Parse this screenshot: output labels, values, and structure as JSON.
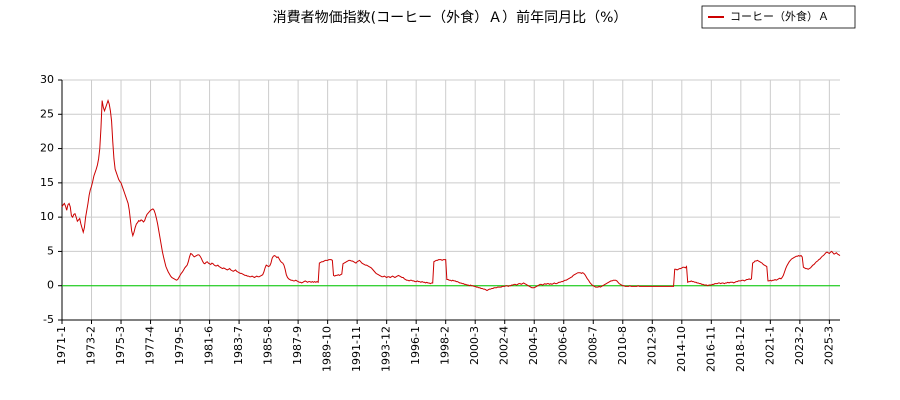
{
  "chart_data": {
    "type": "line",
    "title": "消費者物価指数(コーヒー（外食）Ａ）前年同月比（%）",
    "categories": [
      "1971-1",
      null,
      null,
      null,
      null,
      null,
      null,
      null,
      null,
      null,
      null,
      null,
      null,
      null,
      null,
      null,
      null,
      null,
      null,
      null,
      null,
      null,
      null,
      null,
      null,
      "1973-2",
      null,
      null,
      null,
      null,
      null,
      null,
      null,
      null,
      null,
      null,
      null,
      null,
      null,
      null,
      null,
      null,
      null,
      null,
      null,
      null,
      null,
      null,
      null,
      null,
      "1975-3",
      null,
      null,
      null,
      null,
      null,
      null,
      null,
      null,
      null,
      null,
      null,
      null,
      null,
      null,
      null,
      null,
      null,
      null,
      null,
      null,
      null,
      null,
      null,
      null,
      "1977-4",
      null,
      null,
      null,
      null,
      null,
      null,
      null,
      null,
      null,
      null,
      null,
      null,
      null,
      null,
      null,
      null,
      null,
      null,
      null,
      null,
      null,
      null,
      null,
      null,
      "1979-5",
      null,
      null,
      null,
      null,
      null,
      null,
      null,
      null,
      null,
      null,
      null,
      null,
      null,
      null,
      null,
      null,
      null,
      null,
      null,
      null,
      null,
      null,
      null,
      null,
      "1981-6",
      null,
      null,
      null,
      null,
      null,
      null,
      null,
      null,
      null,
      null,
      null,
      null,
      null,
      null,
      null,
      null,
      null,
      null,
      null,
      null,
      null,
      null,
      null,
      null,
      "1983-7",
      null,
      null,
      null,
      null,
      null,
      null,
      null,
      null,
      null,
      null,
      null,
      null,
      null,
      null,
      null,
      null,
      null,
      null,
      null,
      null,
      null,
      null,
      null,
      null,
      "1985-8",
      null,
      null,
      null,
      null,
      null,
      null,
      null,
      null,
      null,
      null,
      null,
      null,
      null,
      null,
      null,
      null,
      null,
      null,
      null,
      null,
      null,
      null,
      null,
      null,
      "1987-9",
      null,
      null,
      null,
      null,
      null,
      null,
      null,
      null,
      null,
      null,
      null,
      null,
      null,
      null,
      null,
      null,
      null,
      null,
      null,
      null,
      null,
      null,
      null,
      null,
      "1989-10",
      null,
      null,
      null,
      null,
      null,
      null,
      null,
      null,
      null,
      null,
      null,
      null,
      null,
      null,
      null,
      null,
      null,
      null,
      null,
      null,
      null,
      null,
      null,
      null,
      "1991-11",
      null,
      null,
      null,
      null,
      null,
      null,
      null,
      null,
      null,
      null,
      null,
      null,
      null,
      null,
      null,
      null,
      null,
      null,
      null,
      null,
      null,
      null,
      null,
      null,
      "1993-12",
      null,
      null,
      null,
      null,
      null,
      null,
      null,
      null,
      null,
      null,
      null,
      null,
      null,
      null,
      null,
      null,
      null,
      null,
      null,
      null,
      null,
      null,
      null,
      null,
      "1996-1",
      null,
      null,
      null,
      null,
      null,
      null,
      null,
      null,
      null,
      null,
      null,
      null,
      null,
      null,
      null,
      null,
      null,
      null,
      null,
      null,
      null,
      null,
      null,
      null,
      "1998-2",
      null,
      null,
      null,
      null,
      null,
      null,
      null,
      null,
      null,
      null,
      null,
      null,
      null,
      null,
      null,
      null,
      null,
      null,
      null,
      null,
      null,
      null,
      null,
      null,
      "2000-3",
      null,
      null,
      null,
      null,
      null,
      null,
      null,
      null,
      null,
      null,
      null,
      null,
      null,
      null,
      null,
      null,
      null,
      null,
      null,
      null,
      null,
      null,
      null,
      null,
      "2002-4",
      null,
      null,
      null,
      null,
      null,
      null,
      null,
      null,
      null,
      null,
      null,
      null,
      null,
      null,
      null,
      null,
      null,
      null,
      null,
      null,
      null,
      null,
      null,
      null,
      "2004-5",
      null,
      null,
      null,
      null,
      null,
      null,
      null,
      null,
      null,
      null,
      null,
      null,
      null,
      null,
      null,
      null,
      null,
      null,
      null,
      null,
      null,
      null,
      null,
      null,
      "2006-6",
      null,
      null,
      null,
      null,
      null,
      null,
      null,
      null,
      null,
      null,
      null,
      null,
      null,
      null,
      null,
      null,
      null,
      null,
      null,
      null,
      null,
      null,
      null,
      null,
      "2008-7",
      null,
      null,
      null,
      null,
      null,
      null,
      null,
      null,
      null,
      null,
      null,
      null,
      null,
      null,
      null,
      null,
      null,
      null,
      null,
      null,
      null,
      null,
      null,
      null,
      "2010-8",
      null,
      null,
      null,
      null,
      null,
      null,
      null,
      null,
      null,
      null,
      null,
      null,
      null,
      null,
      null,
      null,
      null,
      null,
      null,
      null,
      null,
      null,
      null,
      null,
      "2012-9",
      null,
      null,
      null,
      null,
      null,
      null,
      null,
      null,
      null,
      null,
      null,
      null,
      null,
      null,
      null,
      null,
      null,
      null,
      null,
      null,
      null,
      null,
      null,
      null,
      "2014-10",
      null,
      null,
      null,
      null,
      null,
      null,
      null,
      null,
      null,
      null,
      null,
      null,
      null,
      null,
      null,
      null,
      null,
      null,
      null,
      null,
      null,
      null,
      null,
      null,
      "2016-11",
      null,
      null,
      null,
      null,
      null,
      null,
      null,
      null,
      null,
      null,
      null,
      null,
      null,
      null,
      null,
      null,
      null,
      null,
      null,
      null,
      null,
      null,
      null,
      null,
      "2018-12",
      null,
      null,
      null,
      null,
      null,
      null,
      null,
      null,
      null,
      null,
      null,
      null,
      null,
      null,
      null,
      null,
      null,
      null,
      null,
      null,
      null,
      null,
      null,
      null,
      "2021-1",
      null,
      null,
      null,
      null,
      null,
      null,
      null,
      null,
      null,
      null,
      null,
      null,
      null,
      null,
      null,
      null,
      null,
      null,
      null,
      null,
      null,
      null,
      null,
      null,
      "2023-2",
      null,
      null,
      null,
      null,
      null,
      null,
      null,
      null,
      null,
      null,
      null,
      null,
      null,
      null,
      null,
      null,
      null,
      null,
      null,
      null,
      null,
      null,
      null,
      null,
      "2025-3",
      null,
      null,
      null,
      null,
      null,
      null,
      null,
      null,
      null
    ],
    "series": [
      {
        "name": "コーヒー（外食）Ａ",
        "color": "#cc0000",
        "values": [
          11.5,
          11.8,
          12,
          11.6,
          11,
          11.8,
          12,
          11.5,
          10.2,
          10,
          10.4,
          10.5,
          10,
          9.4,
          9.6,
          9.8,
          9,
          8.4,
          7.8,
          8.5,
          10,
          11,
          12,
          13.2,
          14,
          14.5,
          15.2,
          16,
          16.5,
          17,
          17.6,
          18.5,
          20,
          23,
          27,
          26,
          25.5,
          26,
          26.5,
          27,
          26.5,
          25.5,
          24,
          21,
          18.5,
          17,
          16.5,
          16,
          15.5,
          15.2,
          15,
          14.5,
          14,
          13.5,
          13,
          12.5,
          12,
          11,
          9.5,
          8,
          7.3,
          7.8,
          8.5,
          9,
          9.2,
          9.5,
          9.4,
          9.6,
          9.5,
          9.3,
          9.5,
          10,
          10.4,
          10.6,
          10.8,
          11,
          11.1,
          11.2,
          11,
          10.5,
          9.8,
          9,
          8,
          7,
          6,
          5,
          4.2,
          3.5,
          2.8,
          2.4,
          2,
          1.7,
          1.4,
          1.2,
          1.1,
          1,
          0.9,
          0.8,
          0.9,
          1.2,
          1.5,
          1.8,
          2,
          2.3,
          2.6,
          2.8,
          3,
          3.5,
          4.2,
          4.7,
          4.6,
          4.4,
          4.2,
          4.3,
          4.4,
          4.5,
          4.5,
          4.3,
          4,
          3.6,
          3.3,
          3.2,
          3.4,
          3.5,
          3.3,
          3.2,
          3.1,
          3.3,
          3.2,
          3,
          2.9,
          2.9,
          3,
          2.8,
          2.7,
          2.6,
          2.5,
          2.6,
          2.5,
          2.4,
          2.3,
          2.4,
          2.5,
          2.3,
          2.2,
          2.1,
          2.2,
          2.3,
          2.1,
          2,
          1.9,
          1.8,
          1.8,
          1.7,
          1.6,
          1.5,
          1.5,
          1.4,
          1.4,
          1.3,
          1.3,
          1.4,
          1.3,
          1.2,
          1.3,
          1.4,
          1.3,
          1.3,
          1.4,
          1.5,
          1.6,
          2,
          2.6,
          3,
          2.9,
          2.8,
          2.9,
          3.3,
          4,
          4.3,
          4.4,
          4.3,
          4.1,
          4.2,
          3.9,
          3.6,
          3.4,
          3.3,
          3,
          2.4,
          1.6,
          1.2,
          1,
          0.9,
          0.8,
          0.8,
          0.7,
          0.7,
          0.8,
          0.7,
          0.6,
          0.5,
          0.5,
          0.4,
          0.5,
          0.6,
          0.7,
          0.6,
          0.5,
          0.6,
          0.6,
          0.5,
          0.6,
          0.5,
          0.6,
          0.5,
          0.6,
          0.5,
          3.3,
          3.4,
          3.5,
          3.5,
          3.6,
          3.7,
          3.7,
          3.7,
          3.8,
          3.8,
          3.8,
          3.7,
          1.5,
          1.4,
          1.5,
          1.5,
          1.6,
          1.5,
          1.6,
          1.7,
          3.2,
          3.3,
          3.4,
          3.5,
          3.6,
          3.7,
          3.7,
          3.6,
          3.6,
          3.5,
          3.4,
          3.3,
          3.5,
          3.6,
          3.7,
          3.5,
          3.3,
          3.2,
          3.1,
          3,
          3,
          2.9,
          2.8,
          2.7,
          2.6,
          2.4,
          2.2,
          2,
          1.8,
          1.7,
          1.6,
          1.5,
          1.4,
          1.3,
          1.3,
          1.4,
          1.3,
          1.2,
          1.3,
          1.3,
          1.2,
          1.3,
          1.4,
          1.3,
          1.2,
          1.3,
          1.4,
          1.5,
          1.4,
          1.3,
          1.2,
          1.2,
          1,
          0.9,
          0.8,
          0.8,
          0.7,
          0.8,
          0.8,
          0.7,
          0.7,
          0.6,
          0.6,
          0.7,
          0.6,
          0.6,
          0.5,
          0.6,
          0.5,
          0.5,
          0.4,
          0.5,
          0.4,
          0.4,
          0.3,
          0.4,
          0.4,
          3.5,
          3.6,
          3.7,
          3.7,
          3.8,
          3.8,
          3.8,
          3.7,
          3.8,
          3.8,
          3.8,
          0.9,
          0.9,
          0.8,
          0.8,
          0.7,
          0.8,
          0.7,
          0.7,
          0.6,
          0.6,
          0.5,
          0.4,
          0.4,
          0.3,
          0.3,
          0.2,
          0.2,
          0.1,
          0.1,
          0,
          0.1,
          0,
          0,
          -0.1,
          -0.1,
          -0.2,
          -0.2,
          -0.3,
          -0.3,
          -0.4,
          -0.4,
          -0.5,
          -0.5,
          -0.6,
          -0.7,
          -0.6,
          -0.5,
          -0.5,
          -0.4,
          -0.4,
          -0.3,
          -0.3,
          -0.3,
          -0.2,
          -0.2,
          -0.2,
          -0.2,
          -0.1,
          -0.1,
          -0.1,
          0,
          0,
          -0.1,
          0,
          0,
          0.1,
          0.1,
          0.2,
          0.2,
          0.1,
          0.2,
          0.3,
          0.3,
          0.2,
          0.3,
          0.4,
          0.3,
          0.2,
          0.1,
          0,
          -0.1,
          -0.2,
          -0.3,
          -0.3,
          -0.3,
          -0.2,
          -0.1,
          0,
          0.1,
          0.2,
          0.2,
          0.1,
          0.2,
          0.3,
          0.2,
          0.3,
          0.3,
          0.2,
          0.3,
          0.2,
          0.3,
          0.4,
          0.3,
          0.3,
          0.4,
          0.5,
          0.5,
          0.6,
          0.6,
          0.7,
          0.8,
          0.8,
          0.9,
          1,
          1.1,
          1.2,
          1.3,
          1.5,
          1.6,
          1.7,
          1.8,
          1.9,
          1.9,
          1.9,
          1.8,
          1.9,
          1.8,
          1.6,
          1.3,
          1,
          0.8,
          0.5,
          0.3,
          0.1,
          0,
          -0.1,
          -0.2,
          -0.2,
          -0.2,
          -0.1,
          -0.2,
          -0.1,
          0,
          0.1,
          0.2,
          0.3,
          0.4,
          0.5,
          0.6,
          0.7,
          0.7,
          0.8,
          0.8,
          0.8,
          0.7,
          0.5,
          0.3,
          0.2,
          0.1,
          0,
          0,
          -0.1,
          -0.1,
          -0.1,
          -0.1,
          0,
          -0.1,
          -0.1,
          -0.1,
          -0.1,
          -0.1,
          -0.1,
          0,
          -0.1,
          -0.1,
          -0.1,
          -0.1,
          -0.1,
          -0.1,
          -0.1,
          -0.1,
          -0.1,
          -0.1,
          -0.1,
          -0.1,
          -0.1,
          -0.1,
          -0.1,
          -0.1,
          -0.1,
          -0.1,
          -0.1,
          -0.1,
          -0.1,
          -0.1,
          -0.1,
          -0.1,
          -0.1,
          -0.1,
          -0.1,
          -0.1,
          -0.1,
          -0.1,
          2.4,
          2.4,
          2.3,
          2.4,
          2.5,
          2.5,
          2.6,
          2.7,
          2.7,
          2.6,
          2.8,
          0.5,
          0.6,
          0.6,
          0.7,
          0.6,
          0.6,
          0.5,
          0.5,
          0.4,
          0.4,
          0.3,
          0.3,
          0.2,
          0.2,
          0.1,
          0.1,
          0.1,
          0,
          0.1,
          0.1,
          0.1,
          0.2,
          0.2,
          0.3,
          0.3,
          0.3,
          0.4,
          0.4,
          0.3,
          0.4,
          0.4,
          0.3,
          0.4,
          0.4,
          0.5,
          0.4,
          0.5,
          0.5,
          0.5,
          0.4,
          0.5,
          0.6,
          0.6,
          0.7,
          0.7,
          0.7,
          0.8,
          0.8,
          0.7,
          0.8,
          0.9,
          0.9,
          1,
          0.9,
          1,
          3.3,
          3.4,
          3.6,
          3.6,
          3.7,
          3.6,
          3.5,
          3.4,
          3.3,
          3.1,
          3,
          2.9,
          2.8,
          0.7,
          0.7,
          0.8,
          0.7,
          0.8,
          0.8,
          0.9,
          0.8,
          0.9,
          1,
          1.1,
          1,
          1.2,
          1.5,
          2,
          2.5,
          2.9,
          3.2,
          3.5,
          3.7,
          3.9,
          4,
          4.1,
          4.2,
          4.3,
          4.3,
          4.4,
          4.3,
          4.4,
          4.2,
          2.7,
          2.6,
          2.5,
          2.5,
          2.4,
          2.5,
          2.6,
          2.8,
          3,
          3.1,
          3.3,
          3.5,
          3.6,
          3.8,
          3.9,
          4.1,
          4.3,
          4.4,
          4.6,
          4.8,
          4.9,
          4.8,
          4.7,
          4.9,
          5,
          4.8,
          4.6,
          4.7,
          4.8,
          4.6,
          4.5,
          4.4
        ]
      }
    ],
    "ylim": [
      -5,
      30
    ],
    "yticks": [
      -5,
      0,
      5,
      10,
      15,
      20,
      25,
      30
    ],
    "hline": 0,
    "hline_color": "#00cc00",
    "grid": true,
    "legend": "top-right"
  }
}
